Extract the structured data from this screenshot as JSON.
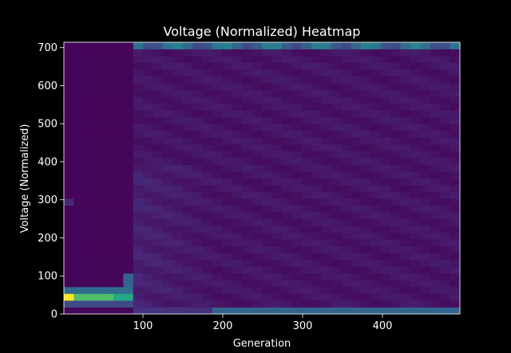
{
  "chart_data": {
    "type": "heatmap",
    "title": "Voltage (Normalized) Heatmap",
    "xlabel": "Generation",
    "ylabel": "Voltage (Normalized)",
    "xlim": [
      1,
      497
    ],
    "ylim": [
      0,
      714
    ],
    "x_ticks": [
      100,
      200,
      300,
      400
    ],
    "y_ticks": [
      0,
      100,
      200,
      300,
      400,
      500,
      600,
      700
    ],
    "grid": false,
    "colormap": "viridis",
    "background_color": "#000000",
    "plot_border_color": "#ffffff",
    "x_bin_width": 12.4,
    "y_bin_width": 17.85,
    "x_bins": 40,
    "y_bins": 40,
    "region_intensity": {
      "early_generations_x_max": 88,
      "early_background": 0.02,
      "early_hotspots": [
        {
          "x_range": [
            1,
            13
          ],
          "y_range": [
            36,
            54
          ],
          "value": 1.0
        },
        {
          "x_range": [
            13,
            63
          ],
          "y_range": [
            36,
            54
          ],
          "value": 0.82
        },
        {
          "x_range": [
            63,
            88
          ],
          "y_range": [
            36,
            54
          ],
          "value": 0.75
        },
        {
          "x_range": [
            1,
            88
          ],
          "y_range": [
            54,
            71
          ],
          "value": 0.45
        },
        {
          "x_range": [
            1,
            88
          ],
          "y_range": [
            18,
            36
          ],
          "value": 0.28
        },
        {
          "x_range": [
            75,
            88
          ],
          "y_range": [
            71,
            107
          ],
          "value": 0.4
        },
        {
          "x_range": [
            1,
            13
          ],
          "y_range": [
            286,
            304
          ],
          "value": 0.15
        }
      ],
      "late_top_band": {
        "y_range": [
          696,
          714
        ],
        "value": 0.55
      },
      "late_bottom_band": {
        "y_range": [
          0,
          18
        ],
        "value": 0.45
      },
      "late_interior": 0.07
    }
  }
}
